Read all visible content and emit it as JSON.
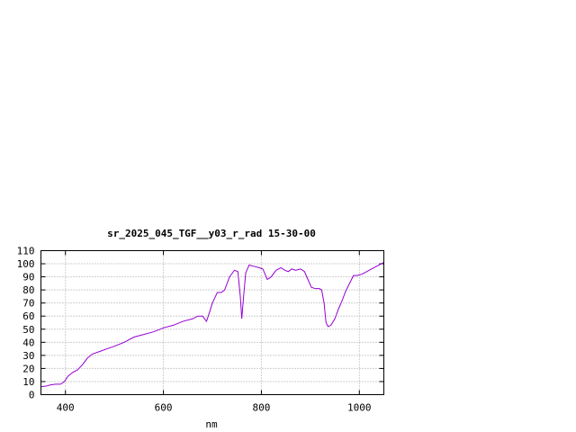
{
  "chart_data": {
    "type": "line",
    "title": "sr_2025_045_TGF__y03_r_rad 15-30-00",
    "xlabel": "nm",
    "ylabel": "",
    "xlim": [
      350,
      1050
    ],
    "ylim": [
      0,
      110
    ],
    "xticks": [
      400,
      600,
      800,
      1000
    ],
    "yticks": [
      0,
      10,
      20,
      30,
      40,
      50,
      60,
      70,
      80,
      90,
      100,
      110
    ],
    "grid": true,
    "line_color": "#9400d3",
    "series": [
      {
        "x": [
          350,
          360,
          370,
          380,
          390,
          398,
          405,
          415,
          425,
          435,
          445,
          455,
          470,
          485,
          500,
          520,
          540,
          560,
          580,
          600,
          620,
          640,
          660,
          670,
          680,
          688,
          695,
          700,
          710,
          718,
          725,
          735,
          745,
          752,
          757,
          760,
          763,
          768,
          775,
          785,
          795,
          803,
          812,
          820,
          830,
          840,
          848,
          855,
          862,
          870,
          880,
          888,
          895,
          902,
          910,
          918,
          923,
          928,
          932,
          936,
          942,
          950,
          958,
          965,
          972,
          980,
          988,
          995,
          1005,
          1015,
          1025,
          1035,
          1045,
          1050
        ],
        "y": [
          6,
          6.5,
          7.5,
          8,
          8,
          10,
          14,
          17,
          19,
          23,
          28,
          31,
          33,
          35,
          37,
          40,
          44,
          46,
          48,
          51,
          53,
          56,
          58,
          60,
          60,
          56,
          64,
          70,
          78,
          78,
          80,
          90,
          95,
          94,
          75,
          58,
          72,
          93,
          99,
          98,
          97,
          96,
          88,
          90,
          95,
          97,
          95,
          94,
          96,
          95,
          96,
          94,
          88,
          82,
          81,
          81,
          80,
          70,
          55,
          52,
          53,
          58,
          66,
          72,
          79,
          85,
          91,
          91,
          92,
          94,
          96,
          98,
          100,
          101
        ]
      }
    ]
  }
}
